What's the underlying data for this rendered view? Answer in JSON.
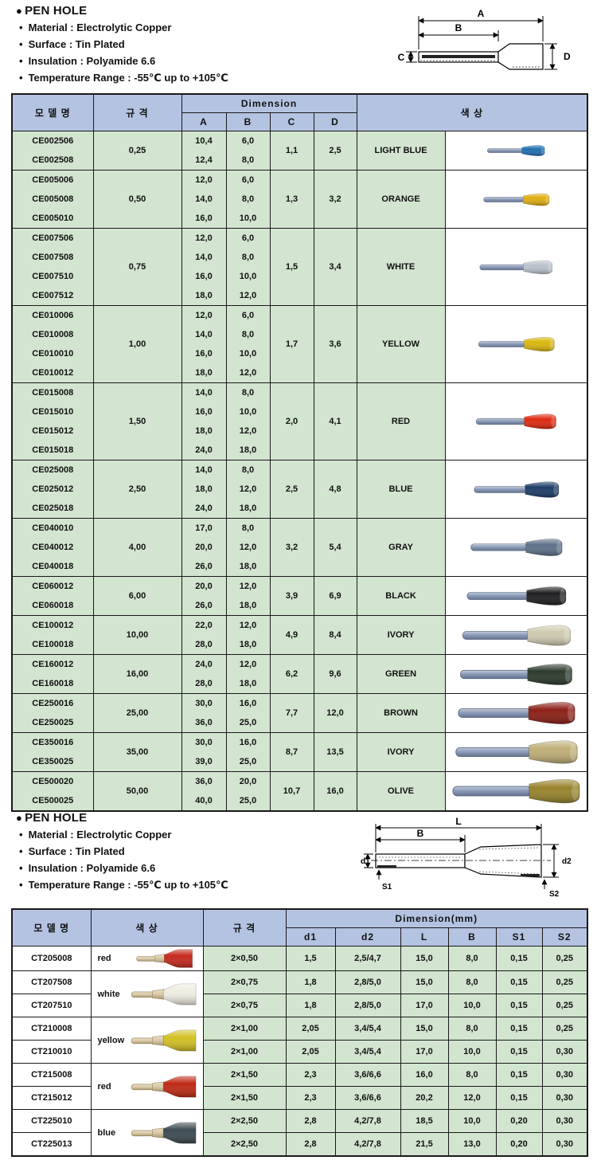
{
  "colors": {
    "header_bg": "#b5c3e2",
    "cell_green": "#d2e5cf",
    "border": "#1a1a1a",
    "tube_gray": "#8d9cb8",
    "pin_tan": "#d9c9a8"
  },
  "section1": {
    "title": "PEN HOLE",
    "bullets": [
      "Material : Electrolytic Copper",
      "Surface : Tin Plated",
      "Insulation : Polyamide 6.6",
      "Temperature Range : -55℃  up to +105℃"
    ],
    "diagram": {
      "a": "A",
      "b": "B",
      "c": "C",
      "d": "D"
    }
  },
  "table1": {
    "headers": {
      "model": "모 델 명",
      "spec": "규  격",
      "dim": "Dimension",
      "a": "A",
      "b": "B",
      "c": "C",
      "d": "D",
      "color": "색  상"
    },
    "groups": [
      {
        "spec": "0,25",
        "c": "1,1",
        "d": "2,5",
        "color_name": "LIGHT BLUE",
        "hex": "#1e6fb0",
        "img_scale": 0.45,
        "rows": [
          {
            "model": "CE002506",
            "a": "10,4",
            "b": "6,0"
          },
          {
            "model": "CE002508",
            "a": "12,4",
            "b": "8,0"
          }
        ]
      },
      {
        "spec": "0,50",
        "c": "1,3",
        "d": "3,2",
        "color_name": "ORANGE",
        "hex": "#dfae12",
        "img_scale": 0.52,
        "rows": [
          {
            "model": "CE005006",
            "a": "12,0",
            "b": "6,0"
          },
          {
            "model": "CE005008",
            "a": "14,0",
            "b": "8,0"
          },
          {
            "model": "CE005010",
            "a": "16,0",
            "b": "10,0"
          }
        ]
      },
      {
        "spec": "0,75",
        "c": "1,5",
        "d": "3,4",
        "color_name": "WHITE",
        "hex": "#b9c2cc",
        "img_scale": 0.57,
        "rows": [
          {
            "model": "CE007506",
            "a": "12,0",
            "b": "6,0"
          },
          {
            "model": "CE007508",
            "a": "14,0",
            "b": "8,0"
          },
          {
            "model": "CE007510",
            "a": "16,0",
            "b": "10,0"
          },
          {
            "model": "CE007512",
            "a": "18,0",
            "b": "12,0"
          }
        ]
      },
      {
        "spec": "1,00",
        "c": "1,7",
        "d": "3,6",
        "color_name": "YELLOW",
        "hex": "#d9b80b",
        "img_scale": 0.6,
        "rows": [
          {
            "model": "CE010006",
            "a": "12,0",
            "b": "6,0"
          },
          {
            "model": "CE010008",
            "a": "14,0",
            "b": "8,0"
          },
          {
            "model": "CE010010",
            "a": "16,0",
            "b": "10,0"
          },
          {
            "model": "CE010012",
            "a": "18,0",
            "b": "12,0"
          }
        ]
      },
      {
        "spec": "1,50",
        "c": "2,0",
        "d": "4,1",
        "color_name": "RED",
        "hex": "#e02a10",
        "img_scale": 0.63,
        "rows": [
          {
            "model": "CE015008",
            "a": "14,0",
            "b": "8,0"
          },
          {
            "model": "CE015010",
            "a": "16,0",
            "b": "10,0"
          },
          {
            "model": "CE015012",
            "a": "18,0",
            "b": "12,0"
          },
          {
            "model": "CE015018",
            "a": "24,0",
            "b": "18,0"
          }
        ]
      },
      {
        "spec": "2,50",
        "c": "2,5",
        "d": "4,8",
        "color_name": "BLUE",
        "hex": "#1d3d66",
        "img_scale": 0.67,
        "rows": [
          {
            "model": "CE025008",
            "a": "14,0",
            "b": "8,0"
          },
          {
            "model": "CE025012",
            "a": "18,0",
            "b": "12,0"
          },
          {
            "model": "CE025018",
            "a": "24,0",
            "b": "18,0"
          }
        ]
      },
      {
        "spec": "4,00",
        "c": "3,2",
        "d": "5,4",
        "color_name": "GRAY",
        "hex": "#5d7089",
        "img_scale": 0.72,
        "rows": [
          {
            "model": "CE040010",
            "a": "17,0",
            "b": "8,0"
          },
          {
            "model": "CE040012",
            "a": "20,0",
            "b": "12,0"
          },
          {
            "model": "CE040018",
            "a": "26,0",
            "b": "18,0"
          }
        ]
      },
      {
        "spec": "6,00",
        "c": "3,9",
        "d": "6,9",
        "color_name": "BLACK",
        "hex": "#1f1f23",
        "img_scale": 0.78,
        "rows": [
          {
            "model": "CE060012",
            "a": "20,0",
            "b": "12,0"
          },
          {
            "model": "CE060018",
            "a": "26,0",
            "b": "18,0"
          }
        ]
      },
      {
        "spec": "10,00",
        "c": "4,9",
        "d": "8,4",
        "color_name": "IVORY",
        "hex": "#cfcbb0",
        "img_scale": 0.85,
        "rows": [
          {
            "model": "CE100012",
            "a": "22,0",
            "b": "12,0"
          },
          {
            "model": "CE100018",
            "a": "28,0",
            "b": "18,0"
          }
        ]
      },
      {
        "spec": "16,00",
        "c": "6,2",
        "d": "9,6",
        "color_name": "GREEN",
        "hex": "#2c3b2d",
        "img_scale": 0.88,
        "rows": [
          {
            "model": "CE160012",
            "a": "24,0",
            "b": "12,0"
          },
          {
            "model": "CE160018",
            "a": "28,0",
            "b": "18,0"
          }
        ]
      },
      {
        "spec": "25,00",
        "c": "7,7",
        "d": "12,0",
        "color_name": "BROWN",
        "hex": "#8c1f16",
        "img_scale": 0.92,
        "rows": [
          {
            "model": "CE250016",
            "a": "30,0",
            "b": "16,0"
          },
          {
            "model": "CE250025",
            "a": "36,0",
            "b": "25,0"
          }
        ]
      },
      {
        "spec": "35,00",
        "c": "8,7",
        "d": "13,5",
        "color_name": "IVORY",
        "hex": "#bfae77",
        "img_scale": 0.96,
        "rows": [
          {
            "model": "CE350016",
            "a": "30,0",
            "b": "16,0"
          },
          {
            "model": "CE350025",
            "a": "39,0",
            "b": "25,0"
          }
        ]
      },
      {
        "spec": "50,00",
        "c": "10,7",
        "d": "16,0",
        "color_name": "OLIVE",
        "hex": "#97832c",
        "img_scale": 1.0,
        "rows": [
          {
            "model": "CE500020",
            "a": "36,0",
            "b": "20,0"
          },
          {
            "model": "CE500025",
            "a": "40,0",
            "b": "25,0"
          }
        ]
      }
    ]
  },
  "section2": {
    "title": "PEN HOLE",
    "bullets": [
      "Material : Electrolytic Copper",
      "Surface : Tin Plated",
      "Insulation : Polyamide 6.6",
      "Temperature Range : -55℃  up to +105℃"
    ],
    "diagram": {
      "l": "L",
      "b": "B",
      "d1": "d1",
      "d2": "d2",
      "s1": "S1",
      "s2": "S2"
    }
  },
  "table2": {
    "headers": {
      "model": "모 델 명",
      "color": "색  상",
      "spec": "규  격",
      "dim": "Dimension(mm)",
      "cols": [
        "d1",
        "d2",
        "L",
        "B",
        "S1",
        "S2"
      ]
    },
    "groups": [
      {
        "color_name": "red",
        "hex": "#c5281c",
        "rows": [
          {
            "model": "CT205008",
            "spec": "2×0,50",
            "dims": [
              "1,5",
              "2,5/4,7",
              "15,0",
              "8,0",
              "0,15",
              "0,25"
            ]
          }
        ]
      },
      {
        "color_name": "white",
        "hex": "#efece0",
        "rows": [
          {
            "model": "CT207508",
            "spec": "2×0,75",
            "dims": [
              "1,8",
              "2,8/5,0",
              "15,0",
              "8,0",
              "0,15",
              "0,25"
            ]
          },
          {
            "model": "CT207510",
            "spec": "2×0,75",
            "dims": [
              "1,8",
              "2,8/5,0",
              "17,0",
              "10,0",
              "0,15",
              "0,25"
            ]
          }
        ]
      },
      {
        "color_name": "yellow",
        "hex": "#d3c023",
        "rows": [
          {
            "model": "CT210008",
            "spec": "2×1,00",
            "dims": [
              "2,05",
              "3,4/5,4",
              "15,0",
              "8,0",
              "0,15",
              "0,25"
            ]
          },
          {
            "model": "CT210010",
            "spec": "2×1,00",
            "dims": [
              "2,05",
              "3,4/5,4",
              "17,0",
              "10,0",
              "0,15",
              "0,30"
            ]
          }
        ]
      },
      {
        "color_name": "red",
        "hex": "#c02a14",
        "rows": [
          {
            "model": "CT215008",
            "spec": "2×1,50",
            "dims": [
              "2,3",
              "3,6/6,6",
              "16,0",
              "8,0",
              "0,15",
              "0,30"
            ]
          },
          {
            "model": "CT215012",
            "spec": "2×1,50",
            "dims": [
              "2,3",
              "3,6/6,6",
              "20,2",
              "12,0",
              "0,15",
              "0,30"
            ]
          }
        ]
      },
      {
        "color_name": "blue",
        "hex": "#3c4a52",
        "rows": [
          {
            "model": "CT225010",
            "spec": "2×2,50",
            "dims": [
              "2,8",
              "4,2/7,8",
              "18,5",
              "10,0",
              "0,20",
              "0,30"
            ]
          },
          {
            "model": "CT225013",
            "spec": "2×2,50",
            "dims": [
              "2,8",
              "4,2/7,8",
              "21,5",
              "13,0",
              "0,20",
              "0,30"
            ]
          }
        ]
      }
    ]
  }
}
